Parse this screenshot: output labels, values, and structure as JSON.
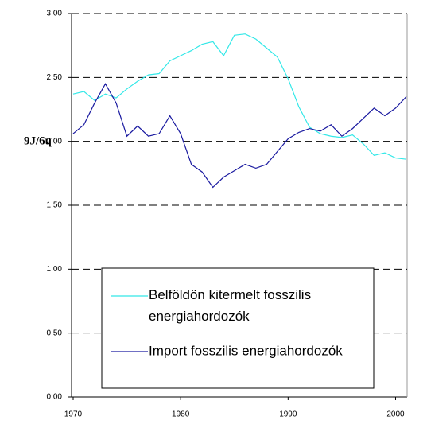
{
  "chart_data": {
    "type": "line",
    "y_label": "9J/6ɥ",
    "x": [
      1970,
      1971,
      1972,
      1973,
      1974,
      1975,
      1976,
      1977,
      1978,
      1979,
      1980,
      1981,
      1982,
      1983,
      1984,
      1985,
      1986,
      1987,
      1988,
      1989,
      1990,
      1991,
      1992,
      1993,
      1994,
      1995,
      1996,
      1997,
      1998,
      1999,
      2000,
      2001
    ],
    "series": [
      {
        "name": "Belföldön kitermelt fosszilis energiahordozók",
        "color": "#33e8e8",
        "values": [
          2.37,
          2.39,
          2.32,
          2.37,
          2.34,
          2.41,
          2.47,
          2.52,
          2.53,
          2.63,
          2.67,
          2.71,
          2.76,
          2.78,
          2.67,
          2.83,
          2.84,
          2.8,
          2.73,
          2.66,
          2.49,
          2.27,
          2.11,
          2.06,
          2.04,
          2.03,
          2.05,
          1.98,
          1.89,
          1.91,
          1.87,
          1.86
        ]
      },
      {
        "name": "Import fosszilis energiahordozók",
        "color": "#1a1aa0",
        "values": [
          2.06,
          2.13,
          2.3,
          2.45,
          2.3,
          2.04,
          2.12,
          2.04,
          2.06,
          2.2,
          2.06,
          1.82,
          1.76,
          1.64,
          1.72,
          1.77,
          1.82,
          1.79,
          1.82,
          1.92,
          2.02,
          2.07,
          2.1,
          2.08,
          2.13,
          2.04,
          2.1,
          2.18,
          2.26,
          2.2,
          2.26,
          2.35
        ]
      }
    ],
    "xlim": [
      1970,
      2001
    ],
    "xticks": [
      1970,
      1980,
      1990,
      2000
    ],
    "ylim": [
      0,
      3
    ],
    "yticks": [
      {
        "value": 0,
        "label": "0,00"
      },
      {
        "value": 0.5,
        "label": "0,50"
      },
      {
        "value": 1,
        "label": "1,00"
      },
      {
        "value": 1.5,
        "label": "1,50"
      },
      {
        "value": 2,
        "label": "2,00"
      },
      {
        "value": 2.5,
        "label": "2,50"
      },
      {
        "value": 3,
        "label": "3,00"
      }
    ],
    "grid": true
  }
}
